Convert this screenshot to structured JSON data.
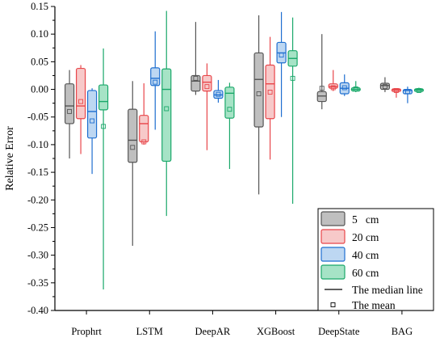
{
  "chart_data": {
    "type": "box",
    "ylabel": "Relative Error",
    "xlabel": "",
    "ylim": [
      -0.4,
      0.15
    ],
    "yticks": [
      "0.15",
      "0.10",
      "0.05",
      "0.00",
      "-0.05",
      "-0.10",
      "-0.15",
      "-0.20",
      "-0.25",
      "-0.30",
      "-0.35",
      "-0.40"
    ],
    "ytick_values": [
      0.15,
      0.1,
      0.05,
      0.0,
      -0.05,
      -0.1,
      -0.15,
      -0.2,
      -0.25,
      -0.3,
      -0.35,
      -0.4
    ],
    "categories": [
      "Prophrt",
      "LSTM",
      "DeepAR",
      "XGBoost",
      "DeepState",
      "BAG"
    ],
    "series": [
      {
        "name": "5   cm",
        "edge": "#555555",
        "fill": "#bfbfbf",
        "boxes": [
          {
            "whisker_low": -0.125,
            "q1": -0.062,
            "median": -0.03,
            "q3": 0.01,
            "whisker_high": 0.035,
            "mean": -0.04
          },
          {
            "whisker_low": -0.283,
            "q1": -0.132,
            "median": -0.092,
            "q3": -0.036,
            "whisker_high": 0.015,
            "mean": -0.105
          },
          {
            "whisker_low": -0.01,
            "q1": -0.003,
            "median": 0.015,
            "q3": 0.025,
            "whisker_high": 0.122,
            "mean": 0.02
          },
          {
            "whisker_low": -0.19,
            "q1": -0.068,
            "median": 0.018,
            "q3": 0.066,
            "whisker_high": 0.134,
            "mean": -0.008
          },
          {
            "whisker_low": -0.036,
            "q1": -0.022,
            "median": -0.012,
            "q3": -0.004,
            "whisker_high": 0.1,
            "mean": 0.002
          },
          {
            "whisker_low": -0.005,
            "q1": 0.0,
            "median": 0.007,
            "q3": 0.011,
            "whisker_high": 0.022,
            "mean": 0.005
          }
        ]
      },
      {
        "name": "20 cm",
        "edge": "#e8464a",
        "fill": "#f7c9c9",
        "boxes": [
          {
            "whisker_low": -0.117,
            "q1": -0.053,
            "median": -0.03,
            "q3": 0.038,
            "whisker_high": 0.044,
            "mean": -0.022
          },
          {
            "whisker_low": -0.1,
            "q1": -0.095,
            "median": -0.062,
            "q3": -0.047,
            "whisker_high": 0.011,
            "mean": -0.095
          },
          {
            "whisker_low": -0.11,
            "q1": -0.003,
            "median": 0.013,
            "q3": 0.025,
            "whisker_high": 0.047,
            "mean": 0.005
          },
          {
            "whisker_low": -0.127,
            "q1": -0.053,
            "median": 0.01,
            "q3": 0.044,
            "whisker_high": 0.095,
            "mean": -0.005
          },
          {
            "whisker_low": -0.003,
            "q1": 0.002,
            "median": 0.005,
            "q3": 0.01,
            "whisker_high": 0.035,
            "mean": 0.003
          },
          {
            "whisker_low": -0.015,
            "q1": -0.004,
            "median": -0.001,
            "q3": 0.001,
            "whisker_high": 0.002,
            "mean": -0.002
          }
        ]
      },
      {
        "name": "40 cm",
        "edge": "#1f6fd0",
        "fill": "#bdd7f2",
        "boxes": [
          {
            "whisker_low": -0.153,
            "q1": -0.088,
            "median": -0.04,
            "q3": -0.002,
            "whisker_high": 0.002,
            "mean": -0.057
          },
          {
            "whisker_low": -0.073,
            "q1": 0.007,
            "median": 0.02,
            "q3": 0.039,
            "whisker_high": 0.105,
            "mean": 0.013
          },
          {
            "whisker_low": -0.024,
            "q1": -0.016,
            "median": -0.01,
            "q3": -0.002,
            "whisker_high": 0.017,
            "mean": -0.009
          },
          {
            "whisker_low": -0.05,
            "q1": 0.048,
            "median": 0.066,
            "q3": 0.085,
            "whisker_high": 0.14,
            "mean": 0.062
          },
          {
            "whisker_low": -0.012,
            "q1": -0.008,
            "median": 0.002,
            "q3": 0.012,
            "whisker_high": 0.027,
            "mean": 0.003
          },
          {
            "whisker_low": -0.025,
            "q1": -0.008,
            "median": -0.002,
            "q3": 0.0,
            "whisker_high": 0.005,
            "mean": -0.004
          }
        ]
      },
      {
        "name": "60 cm",
        "edge": "#1aa86a",
        "fill": "#a6e3c6",
        "boxes": [
          {
            "whisker_low": -0.362,
            "q1": -0.037,
            "median": -0.022,
            "q3": 0.008,
            "whisker_high": 0.074,
            "mean": -0.067
          },
          {
            "whisker_low": -0.229,
            "q1": -0.13,
            "median": 0.0,
            "q3": 0.037,
            "whisker_high": 0.142,
            "mean": -0.035
          },
          {
            "whisker_low": -0.144,
            "q1": -0.052,
            "median": -0.007,
            "q3": 0.004,
            "whisker_high": 0.012,
            "mean": -0.036
          },
          {
            "whisker_low": -0.207,
            "q1": 0.042,
            "median": 0.056,
            "q3": 0.07,
            "whisker_high": 0.13,
            "mean": 0.02
          },
          {
            "whisker_low": -0.005,
            "q1": -0.003,
            "median": 0.0,
            "q3": 0.003,
            "whisker_high": 0.015,
            "mean": 0.001
          },
          {
            "whisker_low": -0.006,
            "q1": -0.004,
            "median": -0.001,
            "q3": 0.001,
            "whisker_high": 0.003,
            "mean": -0.002
          }
        ]
      }
    ],
    "legend": {
      "position": "bottom-right",
      "median_label": "The median line",
      "mean_label": "The mean"
    }
  }
}
